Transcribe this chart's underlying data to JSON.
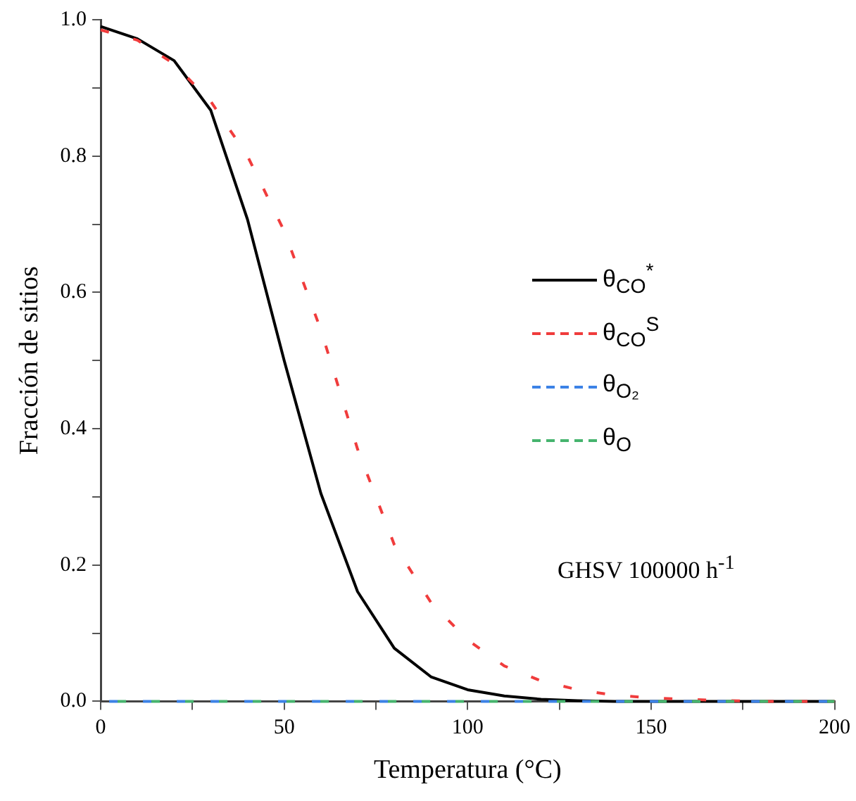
{
  "chart_data": {
    "type": "line",
    "xlabel": "Temperatura (°C)",
    "ylabel": "Fracción de sitios",
    "annotations": [
      "GHSV 100000 h$^{-1}$"
    ],
    "x": [
      0,
      10,
      20,
      30,
      40,
      50,
      60,
      70,
      80,
      90,
      100,
      110,
      120,
      130,
      140,
      150,
      160,
      170,
      180,
      190,
      200
    ],
    "xlim": [
      0,
      200
    ],
    "xticks": [
      0,
      {
        "value": 25,
        "label": null
      },
      50,
      {
        "value": 75,
        "label": null
      },
      100,
      {
        "value": 125,
        "label": null
      },
      150,
      {
        "value": 175,
        "label": null
      },
      200
    ],
    "ylim": [
      0,
      1
    ],
    "yticks": [
      {
        "value": 0,
        "label": "0.0"
      },
      {
        "value": 0.1,
        "label": null
      },
      {
        "value": 0.2,
        "label": "0.2"
      },
      {
        "value": 0.3,
        "label": null
      },
      {
        "value": 0.4,
        "label": "0.4"
      },
      {
        "value": 0.5,
        "label": null
      },
      {
        "value": 0.6,
        "label": "0.6"
      },
      {
        "value": 0.7,
        "label": null
      },
      {
        "value": 0.8,
        "label": "0.8"
      },
      {
        "value": 0.9,
        "label": null
      },
      {
        "value": 1,
        "label": "1.0"
      }
    ],
    "grid": false,
    "legend": "right",
    "marker": "none",
    "series": [
      {
        "name": "θ$_{CO}$$^{*}$",
        "color": "#000000",
        "line_style": "solid",
        "values": [
          0.99,
          0.972,
          0.94,
          0.867,
          0.707,
          0.5,
          0.305,
          0.161,
          0.078,
          0.036,
          0.017,
          0.008,
          0.003,
          0.001,
          0,
          0,
          0,
          0,
          0,
          0,
          0
        ]
      },
      {
        "name": "θ$_{CO}$$^{S}$",
        "color": "#f03c3c",
        "line_style": "dashed",
        "values": [
          0.985,
          0.97,
          0.935,
          0.88,
          0.8,
          0.69,
          0.545,
          0.37,
          0.23,
          0.145,
          0.09,
          0.052,
          0.03,
          0.017,
          0.009,
          0.005,
          0.003,
          0.001,
          0,
          0,
          0
        ]
      },
      {
        "name": "θ$_{O₂}$",
        "color": "#3c82e6",
        "line_style": "dashed",
        "values": [
          0,
          0,
          0,
          0,
          0,
          0,
          0,
          0,
          0,
          0,
          0,
          0,
          0,
          0,
          0,
          0,
          0,
          0,
          0,
          0,
          0
        ]
      },
      {
        "name": "θ$_{O}$",
        "color": "#46b46e",
        "line_style": "dashed",
        "values": [
          0,
          0,
          0,
          0,
          0,
          0,
          0,
          0,
          0,
          0,
          0,
          0,
          0,
          0,
          0,
          0,
          0,
          0,
          0,
          0,
          0
        ]
      }
    ]
  }
}
